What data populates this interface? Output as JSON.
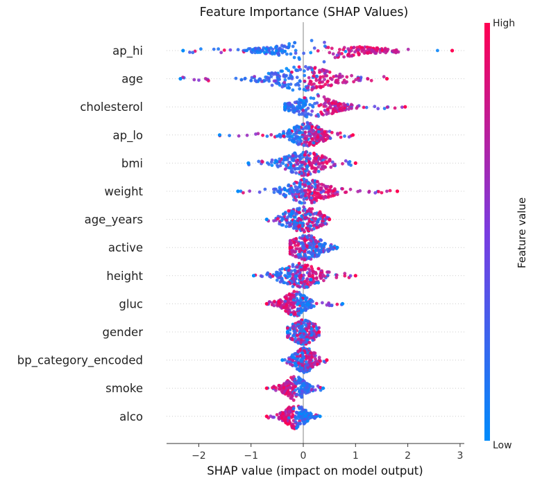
{
  "chart_data": {
    "type": "scatter",
    "title": "Feature Importance (SHAP Values)",
    "xlabel": "SHAP value (impact on model output)",
    "ylabel": "",
    "xlim": [
      -2.65,
      3.1
    ],
    "xticks": [
      -2,
      -1,
      0,
      1,
      2,
      3
    ],
    "xtick_labels": [
      "−2",
      "−1",
      "0",
      "1",
      "2",
      "3"
    ],
    "grid": false,
    "colorbar": {
      "label": "Feature value",
      "high_label": "High",
      "low_label": "Low",
      "low_color": "#008bfb",
      "high_color": "#ff0052"
    },
    "features": [
      {
        "name": "ap_hi",
        "range": [
          -2.3,
          2.85
        ],
        "center_low": -0.6,
        "center_high": 1.2,
        "spread": 1.0
      },
      {
        "name": "age",
        "range": [
          -2.35,
          1.6
        ],
        "center_low": -0.4,
        "center_high": 0.4,
        "spread": 1.0
      },
      {
        "name": "cholesterol",
        "range": [
          -0.35,
          1.95
        ],
        "center_low": -0.15,
        "center_high": 0.6,
        "spread": 0.55
      },
      {
        "name": "ap_lo",
        "range": [
          -1.6,
          0.95
        ],
        "center_low": -0.1,
        "center_high": 0.25,
        "spread": 0.45
      },
      {
        "name": "bmi",
        "range": [
          -1.05,
          1.0
        ],
        "center_low": -0.15,
        "center_high": 0.2,
        "spread": 0.6
      },
      {
        "name": "weight",
        "range": [
          -1.25,
          1.8
        ],
        "center_low": -0.1,
        "center_high": 0.25,
        "spread": 0.6
      },
      {
        "name": "age_years",
        "range": [
          -0.7,
          0.5
        ],
        "center_low": -0.1,
        "center_high": 0.1,
        "spread": 0.6
      },
      {
        "name": "active",
        "range": [
          -0.25,
          0.65
        ],
        "center_low": 0.15,
        "center_high": -0.05,
        "spread": 0.5
      },
      {
        "name": "height",
        "range": [
          -0.95,
          1.0
        ],
        "center_low": -0.2,
        "center_high": 0.1,
        "spread": 0.6
      },
      {
        "name": "gluc",
        "range": [
          -0.7,
          0.75
        ],
        "center_low": 0.0,
        "center_high": -0.3,
        "spread": 0.3
      },
      {
        "name": "gender",
        "range": [
          -0.3,
          0.3
        ],
        "center_low": 0.0,
        "center_high": 0.0,
        "spread": 0.4
      },
      {
        "name": "bp_category_encoded",
        "range": [
          -0.4,
          0.45
        ],
        "center_low": -0.05,
        "center_high": 0.1,
        "spread": 0.3
      },
      {
        "name": "smoke",
        "range": [
          -0.7,
          0.38
        ],
        "center_low": 0.0,
        "center_high": -0.3,
        "spread": 0.25
      },
      {
        "name": "alco",
        "range": [
          -0.7,
          0.32
        ],
        "center_low": 0.0,
        "center_high": -0.3,
        "spread": 0.25
      }
    ]
  }
}
